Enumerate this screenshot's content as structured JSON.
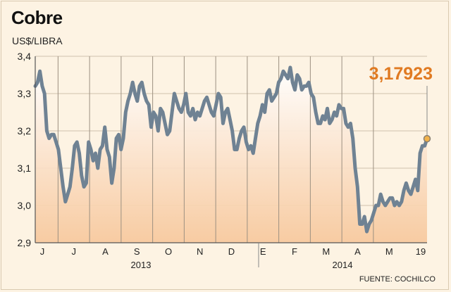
{
  "chart_data": {
    "type": "line",
    "title": "Cobre",
    "ylabel": "US$/LIBRA",
    "source": "FUENTE: COCHILCO",
    "ylim": [
      2.9,
      3.4
    ],
    "y_ticks": [
      "2,9",
      "3,0",
      "3,1",
      "3,2",
      "3,3",
      "3,4"
    ],
    "x_ticks": [
      "J",
      "J",
      "A",
      "S",
      "O",
      "N",
      "D",
      "E",
      "F",
      "M",
      "A",
      "M",
      "19"
    ],
    "year_labels": [
      "2013",
      "2014"
    ],
    "last_value_label": "3,17923",
    "last_value": 3.179,
    "series": [
      {
        "values": [
          3.32,
          3.33,
          3.36,
          3.32,
          3.3,
          3.2,
          3.18,
          3.19,
          3.19,
          3.17,
          3.15,
          3.1,
          3.05,
          3.01,
          3.03,
          3.05,
          3.1,
          3.16,
          3.17,
          3.14,
          3.08,
          3.05,
          3.06,
          3.17,
          3.15,
          3.12,
          3.14,
          3.1,
          3.15,
          3.16,
          3.21,
          3.15,
          3.13,
          3.06,
          3.1,
          3.18,
          3.19,
          3.15,
          3.18,
          3.25,
          3.28,
          3.3,
          3.33,
          3.3,
          3.28,
          3.32,
          3.33,
          3.3,
          3.28,
          3.27,
          3.21,
          3.25,
          3.24,
          3.2,
          3.26,
          3.25,
          3.22,
          3.19,
          3.2,
          3.25,
          3.3,
          3.28,
          3.26,
          3.25,
          3.27,
          3.3,
          3.25,
          3.24,
          3.26,
          3.23,
          3.25,
          3.24,
          3.26,
          3.28,
          3.29,
          3.27,
          3.25,
          3.24,
          3.27,
          3.3,
          3.29,
          3.22,
          3.25,
          3.26,
          3.23,
          3.2,
          3.15,
          3.15,
          3.18,
          3.2,
          3.21,
          3.17,
          3.15,
          3.16,
          3.14,
          3.18,
          3.22,
          3.24,
          3.27,
          3.25,
          3.3,
          3.31,
          3.28,
          3.29,
          3.3,
          3.33,
          3.34,
          3.36,
          3.35,
          3.34,
          3.37,
          3.33,
          3.31,
          3.35,
          3.34,
          3.31,
          3.32,
          3.32,
          3.33,
          3.3,
          3.29,
          3.25,
          3.22,
          3.22,
          3.24,
          3.23,
          3.26,
          3.22,
          3.23,
          3.25,
          3.24,
          3.27,
          3.26,
          3.26,
          3.22,
          3.21,
          3.22,
          3.18,
          3.1,
          3.05,
          2.95,
          2.95,
          2.97,
          2.93,
          2.95,
          2.96,
          2.98,
          3.0,
          3.0,
          3.03,
          3.01,
          3.0,
          3.01,
          3.02,
          3.02,
          3.0,
          3.01,
          3.0,
          3.01,
          3.04,
          3.06,
          3.04,
          3.03,
          3.05,
          3.07,
          3.04,
          3.14,
          3.16,
          3.16,
          3.179
        ]
      }
    ]
  }
}
